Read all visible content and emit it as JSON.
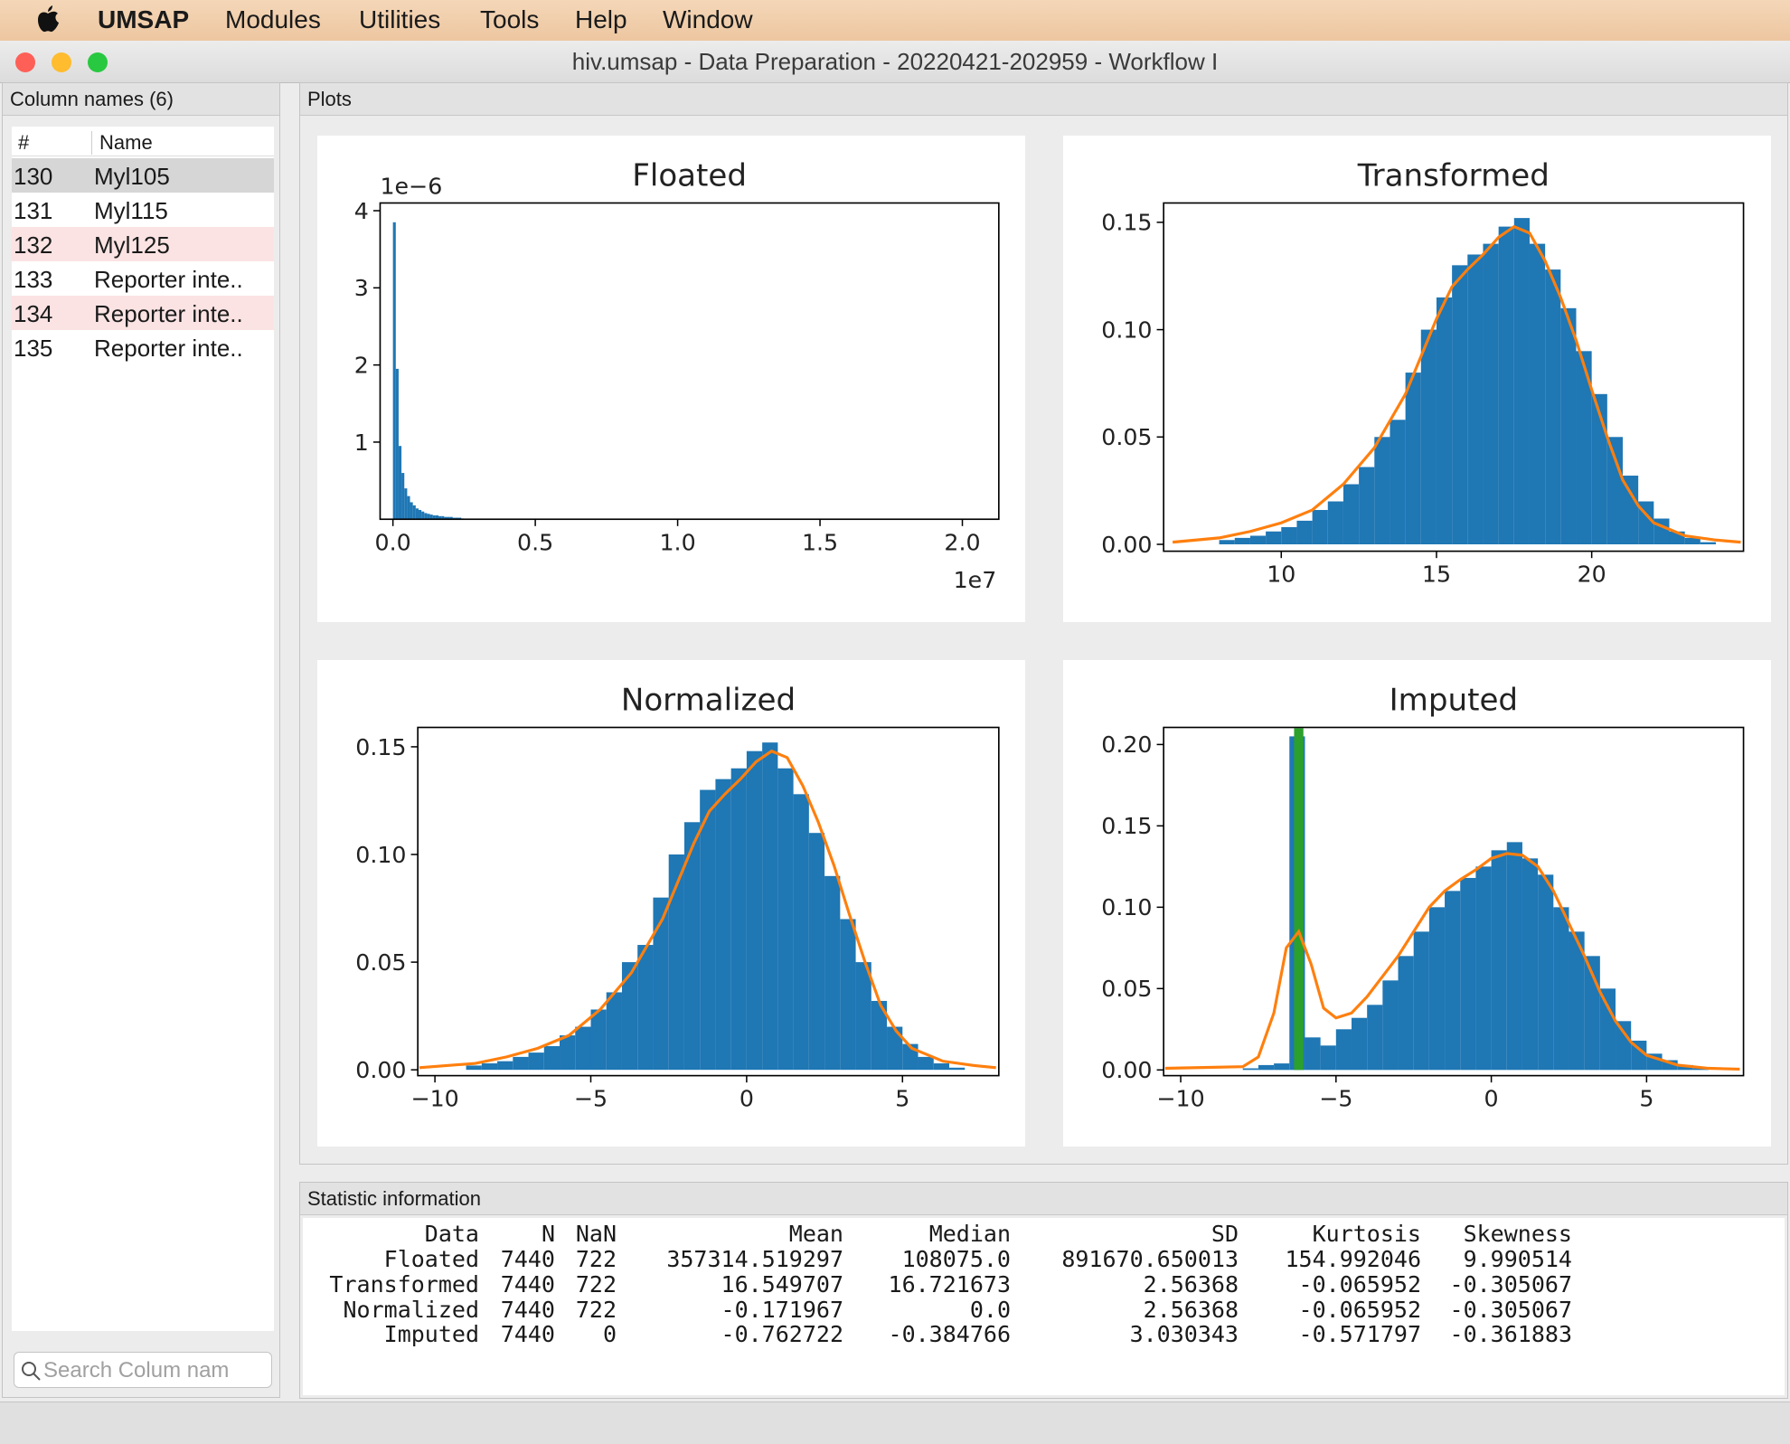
{
  "menu": {
    "items": [
      "UMSAP",
      "Modules",
      "Utilities",
      "Tools",
      "Help",
      "Window"
    ]
  },
  "window_title": "hiv.umsap - Data Preparation - 20220421-202959 - Workflow I",
  "column_list": {
    "title": "Column names (6)",
    "headers": [
      "#",
      "Name"
    ],
    "rows": [
      [
        "130",
        "Myl105"
      ],
      [
        "131",
        "Myl115"
      ],
      [
        "132",
        "Myl125"
      ],
      [
        "133",
        "Reporter inte.."
      ],
      [
        "134",
        "Reporter inte.."
      ],
      [
        "135",
        "Reporter inte.."
      ]
    ],
    "search_placeholder": "Search Colum nam"
  },
  "plots_title": "Plots",
  "chart_data": [
    {
      "type": "histogram",
      "title": "Floated",
      "x_offset_label": "1e7",
      "y_offset_label": "1e−6",
      "xlim": [
        -0.045,
        2.128
      ],
      "ylim": [
        0,
        4.1
      ],
      "xticks": [
        {
          "value": 0,
          "label": "0.0"
        },
        0.5,
        {
          "value": 1,
          "label": "1.0"
        },
        1.5,
        {
          "value": 2,
          "label": "2.0"
        }
      ],
      "yticks": [
        1,
        2,
        3,
        4
      ],
      "series": [
        {
          "color": "#1f77b4",
          "bins": [
            0,
            0.01,
            0.02,
            0.03,
            0.04,
            0.05,
            0.06,
            0.07,
            0.08,
            0.09,
            0.1,
            0.11,
            0.12,
            0.13,
            0.14,
            0.15,
            0.16,
            0.17,
            0.18,
            0.19,
            0.2,
            0.21,
            0.22,
            0.23,
            0.24,
            0.25
          ],
          "values": [
            3.85,
            1.95,
            0.95,
            0.6,
            0.4,
            0.3,
            0.22,
            0.18,
            0.14,
            0.12,
            0.1,
            0.08,
            0.07,
            0.06,
            0.05,
            0.05,
            0.04,
            0.04,
            0.03,
            0.03,
            0.03,
            0.02,
            0.02,
            0.02,
            0.01
          ]
        }
      ]
    },
    {
      "type": "histogram",
      "title": "Transformed",
      "xlim": [
        6.21,
        24.89
      ],
      "ylim": [
        -0.0032,
        0.159
      ],
      "xticks": [
        10,
        15,
        20
      ],
      "yticks": [
        {
          "value": 0,
          "label": "0.00"
        },
        {
          "value": 0.05,
          "label": "0.05"
        },
        {
          "value": 0.1,
          "label": "0.10"
        },
        {
          "value": 0.15,
          "label": "0.15"
        }
      ],
      "series": [
        {
          "color": "#1f77b4",
          "bins": [
            8,
            8.5,
            9,
            9.5,
            10,
            10.5,
            11,
            11.5,
            12,
            12.5,
            13,
            13.5,
            14,
            14.5,
            15,
            15.5,
            16,
            16.5,
            17,
            17.5,
            18,
            18.5,
            19,
            19.5,
            20,
            20.5,
            21,
            21.5,
            22,
            22.5,
            23,
            23.5,
            24
          ],
          "values": [
            0.002,
            0.003,
            0.004,
            0.006,
            0.008,
            0.011,
            0.016,
            0.02,
            0.028,
            0.036,
            0.05,
            0.058,
            0.08,
            0.1,
            0.115,
            0.13,
            0.135,
            0.14,
            0.148,
            0.152,
            0.14,
            0.128,
            0.11,
            0.09,
            0.07,
            0.05,
            0.032,
            0.02,
            0.012,
            0.006,
            0.003,
            0.001
          ]
        },
        {
          "color": "#ff7f0e",
          "x": [
            6.5,
            8,
            9,
            10,
            11,
            12,
            13,
            14,
            15,
            15.5,
            16,
            16.5,
            17,
            17.5,
            18,
            18.5,
            19,
            19.5,
            20,
            20.5,
            21,
            21.5,
            22,
            23,
            24,
            24.8
          ],
          "values": [
            0.001,
            0.003,
            0.006,
            0.01,
            0.016,
            0.028,
            0.045,
            0.07,
            0.105,
            0.12,
            0.128,
            0.135,
            0.143,
            0.148,
            0.145,
            0.132,
            0.115,
            0.095,
            0.072,
            0.05,
            0.03,
            0.018,
            0.01,
            0.004,
            0.002,
            0.001
          ]
        }
      ]
    },
    {
      "type": "histogram",
      "title": "Normalized",
      "xlim": [
        -10.55,
        8.09
      ],
      "ylim": [
        -0.0027,
        0.159
      ],
      "xticks": [
        {
          "value": -10,
          "label": "−10"
        },
        {
          "value": -5,
          "label": "−5"
        },
        0,
        5
      ],
      "yticks": [
        {
          "value": 0,
          "label": "0.00"
        },
        {
          "value": 0.05,
          "label": "0.05"
        },
        {
          "value": 0.1,
          "label": "0.10"
        },
        {
          "value": 0.15,
          "label": "0.15"
        }
      ],
      "series": [
        {
          "color": "#1f77b4",
          "bins": [
            -9,
            -8.5,
            -8,
            -7.5,
            -7,
            -6.5,
            -6,
            -5.5,
            -5,
            -4.5,
            -4,
            -3.5,
            -3,
            -2.5,
            -2,
            -1.5,
            -1,
            -0.5,
            0,
            0.5,
            1,
            1.5,
            2,
            2.5,
            3,
            3.5,
            4,
            4.5,
            5,
            5.5,
            6,
            6.5,
            7
          ],
          "values": [
            0.002,
            0.003,
            0.004,
            0.006,
            0.008,
            0.011,
            0.016,
            0.02,
            0.028,
            0.036,
            0.05,
            0.058,
            0.08,
            0.1,
            0.115,
            0.13,
            0.135,
            0.14,
            0.148,
            0.152,
            0.14,
            0.128,
            0.11,
            0.09,
            0.07,
            0.05,
            0.032,
            0.02,
            0.012,
            0.006,
            0.003,
            0.001
          ]
        },
        {
          "color": "#ff7f0e",
          "x": [
            -10.5,
            -8.7,
            -7.7,
            -6.7,
            -5.7,
            -4.7,
            -3.7,
            -2.7,
            -1.7,
            -1.2,
            -0.7,
            -0.2,
            0.3,
            0.8,
            1.3,
            1.8,
            2.3,
            2.8,
            3.3,
            3.8,
            4.3,
            4.8,
            5.3,
            6.3,
            7.3,
            8.0
          ],
          "values": [
            0.001,
            0.003,
            0.006,
            0.01,
            0.016,
            0.028,
            0.045,
            0.07,
            0.105,
            0.12,
            0.128,
            0.135,
            0.143,
            0.148,
            0.145,
            0.132,
            0.115,
            0.095,
            0.072,
            0.05,
            0.03,
            0.018,
            0.01,
            0.004,
            0.002,
            0.001
          ]
        }
      ]
    },
    {
      "type": "histogram",
      "title": "Imputed",
      "xlim": [
        -10.55,
        8.12
      ],
      "ylim": [
        -0.0035,
        0.2105
      ],
      "xticks": [
        {
          "value": -10,
          "label": "−10"
        },
        {
          "value": -5,
          "label": "−5"
        },
        0,
        5
      ],
      "yticks": [
        {
          "value": 0,
          "label": "0.00"
        },
        {
          "value": 0.05,
          "label": "0.05"
        },
        {
          "value": 0.1,
          "label": "0.10"
        },
        {
          "value": 0.15,
          "label": "0.15"
        },
        {
          "value": 0.2,
          "label": "0.20"
        }
      ],
      "series": [
        {
          "color": "#1f77b4",
          "bins": [
            -8,
            -7.5,
            -7,
            -6.5,
            -6,
            -5.5,
            -5,
            -4.5,
            -4,
            -3.5,
            -3,
            -2.5,
            -2,
            -1.5,
            -1,
            -0.5,
            0,
            0.5,
            1,
            1.5,
            2,
            2.5,
            3,
            3.5,
            4,
            4.5,
            5,
            5.5,
            6,
            6.5,
            7
          ],
          "values": [
            0.001,
            0.003,
            0.004,
            0.205,
            0.02,
            0.015,
            0.025,
            0.032,
            0.04,
            0.055,
            0.07,
            0.085,
            0.1,
            0.11,
            0.118,
            0.125,
            0.135,
            0.14,
            0.13,
            0.12,
            0.1,
            0.085,
            0.07,
            0.05,
            0.03,
            0.018,
            0.01,
            0.006,
            0.003,
            0.001
          ]
        },
        {
          "color": "#2ca02c",
          "bins": [
            -6.35,
            -6.05
          ],
          "values": [
            0.21
          ]
        },
        {
          "color": "#ff7f0e",
          "x": [
            -10.5,
            -8,
            -7.5,
            -7,
            -6.6,
            -6.2,
            -5.8,
            -5.4,
            -5,
            -4.5,
            -4,
            -3,
            -2,
            -1.5,
            -1,
            -0.5,
            0,
            0.5,
            1,
            1.5,
            2,
            2.5,
            3,
            3.5,
            4,
            4.5,
            5,
            6,
            7,
            8
          ],
          "values": [
            0.001,
            0.002,
            0.008,
            0.035,
            0.075,
            0.085,
            0.065,
            0.038,
            0.032,
            0.035,
            0.045,
            0.07,
            0.1,
            0.11,
            0.117,
            0.123,
            0.13,
            0.133,
            0.132,
            0.125,
            0.11,
            0.09,
            0.07,
            0.048,
            0.03,
            0.017,
            0.009,
            0.003,
            0.001,
            0.0005
          ]
        }
      ]
    }
  ],
  "stats": {
    "title": "Statistic information",
    "columns": [
      "Data",
      "N",
      "NaN",
      "Mean",
      "Median",
      "SD",
      "Kurtosis",
      "Skewness"
    ],
    "rows": [
      [
        "Floated",
        "7440",
        "722",
        "357314.519297",
        "108075.0",
        "891670.650013",
        "154.992046",
        "9.990514"
      ],
      [
        "Transformed",
        "7440",
        "722",
        "16.549707",
        "16.721673",
        "2.56368",
        "-0.065952",
        "-0.305067"
      ],
      [
        "Normalized",
        "7440",
        "722",
        "-0.171967",
        "0.0",
        "2.56368",
        "-0.065952",
        "-0.305067"
      ],
      [
        "Imputed",
        "7440",
        "0",
        "-0.762722",
        "-0.384766",
        "3.030343",
        "-0.571797",
        "-0.361883"
      ]
    ]
  }
}
